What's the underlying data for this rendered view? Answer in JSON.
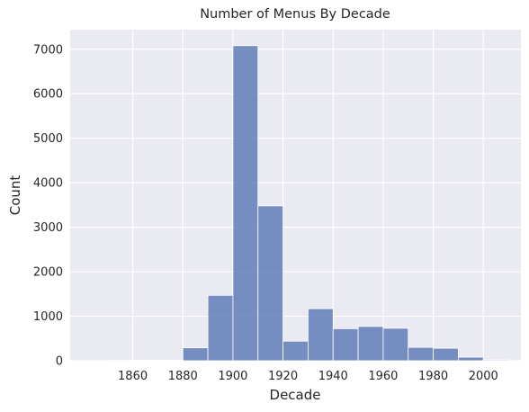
{
  "chart_data": {
    "type": "bar",
    "title": "Number of Menus By Decade",
    "xlabel": "Decade",
    "ylabel": "Count",
    "x_bin_edges": [
      1840,
      1850,
      1860,
      1870,
      1880,
      1890,
      1900,
      1910,
      1920,
      1930,
      1940,
      1950,
      1960,
      1970,
      1980,
      1990,
      2000,
      2010
    ],
    "values": [
      2,
      5,
      10,
      15,
      290,
      1470,
      7080,
      3480,
      440,
      1170,
      720,
      770,
      730,
      300,
      280,
      80,
      20
    ],
    "xlim": [
      1835,
      2015
    ],
    "ylim": [
      0,
      7440
    ],
    "x_ticks": [
      1860,
      1880,
      1900,
      1920,
      1940,
      1960,
      1980,
      2000
    ],
    "y_ticks": [
      0,
      1000,
      2000,
      3000,
      4000,
      5000,
      6000,
      7000
    ],
    "grid": true,
    "colors": {
      "bar": "#5975b5",
      "background": "#eaeaf2",
      "grid": "#ffffff"
    }
  }
}
